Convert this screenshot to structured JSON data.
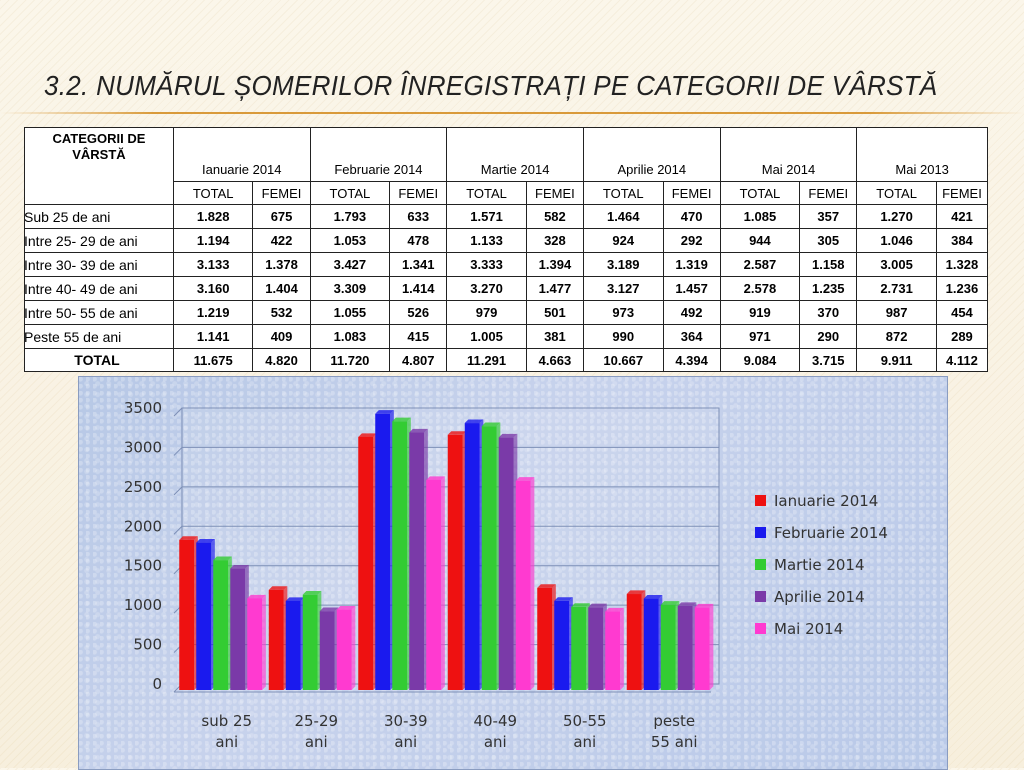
{
  "slide": {
    "title": "3.2. NUMĂRUL ȘOMERILOR ÎNREGISTRAȚI PE CATEGORII DE VÂRSTĂ"
  },
  "table": {
    "category_header": "CATEGORII DE VÂRSTĂ",
    "months": [
      "Ianuarie 2014",
      "Februarie 2014",
      "Martie 2014",
      "Aprilie 2014",
      "Mai 2014",
      "Mai 2013"
    ],
    "sub_headers": [
      "TOTAL",
      "FEMEI"
    ],
    "rows": [
      {
        "label": "Sub 25 de ani",
        "values": [
          "1.828",
          "675",
          "1.793",
          "633",
          "1.571",
          "582",
          "1.464",
          "470",
          "1.085",
          "357",
          "1.270",
          "421"
        ]
      },
      {
        "label": "Intre 25- 29 de ani",
        "values": [
          "1.194",
          "422",
          "1.053",
          "478",
          "1.133",
          "328",
          "924",
          "292",
          "944",
          "305",
          "1.046",
          "384"
        ]
      },
      {
        "label": "Intre 30- 39 de ani",
        "values": [
          "3.133",
          "1.378",
          "3.427",
          "1.341",
          "3.333",
          "1.394",
          "3.189",
          "1.319",
          "2.587",
          "1.158",
          "3.005",
          "1.328"
        ]
      },
      {
        "label": "Intre 40- 49 de ani",
        "values": [
          "3.160",
          "1.404",
          "3.309",
          "1.414",
          "3.270",
          "1.477",
          "3.127",
          "1.457",
          "2.578",
          "1.235",
          "2.731",
          "1.236"
        ]
      },
      {
        "label": "Intre 50- 55 de ani",
        "values": [
          "1.219",
          "532",
          "1.055",
          "526",
          "979",
          "501",
          "973",
          "492",
          "919",
          "370",
          "987",
          "454"
        ]
      },
      {
        "label": "Peste      55 de ani",
        "values": [
          "1.141",
          "409",
          "1.083",
          "415",
          "1.005",
          "381",
          "990",
          "364",
          "971",
          "290",
          "872",
          "289"
        ]
      }
    ],
    "total": {
      "label": "TOTAL",
      "values": [
        "11.675",
        "4.820",
        "11.720",
        "4.807",
        "11.291",
        "4.663",
        "10.667",
        "4.394",
        "9.084",
        "3.715",
        "9.911",
        "4.112"
      ]
    }
  },
  "chart_data": {
    "type": "bar",
    "title": "",
    "xlabel": "",
    "ylabel": "",
    "ylim": [
      0,
      3500
    ],
    "yticks": [
      0,
      500,
      1000,
      1500,
      2000,
      2500,
      3000,
      3500
    ],
    "categories": [
      [
        "sub 25",
        "ani"
      ],
      [
        "25-29",
        "ani"
      ],
      [
        "30-39",
        "ani"
      ],
      [
        "40-49",
        "ani"
      ],
      [
        "50-55",
        "ani"
      ],
      [
        "peste",
        "55 ani"
      ]
    ],
    "series": [
      {
        "name": "Ianuarie 2014",
        "color": "#ee1111",
        "values": [
          1828,
          1194,
          3133,
          3160,
          1219,
          1141
        ]
      },
      {
        "name": "Februarie 2014",
        "color": "#1a1aee",
        "values": [
          1793,
          1053,
          3427,
          3309,
          1055,
          1083
        ]
      },
      {
        "name": "Martie 2014",
        "color": "#33cc33",
        "values": [
          1571,
          1133,
          3333,
          3270,
          979,
          1005
        ]
      },
      {
        "name": "Aprilie 2014",
        "color": "#7a3aa8",
        "values": [
          1464,
          924,
          3189,
          3127,
          973,
          990
        ]
      },
      {
        "name": "Mai 2014",
        "color": "#ff3ad0",
        "values": [
          1085,
          944,
          2587,
          2578,
          919,
          971
        ]
      }
    ],
    "grid": true,
    "legend": "right"
  }
}
